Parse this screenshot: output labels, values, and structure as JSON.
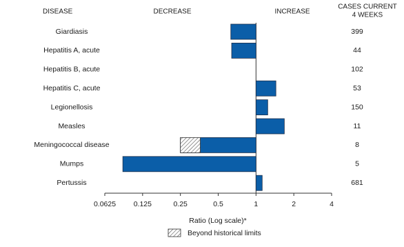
{
  "chart_data": {
    "type": "bar",
    "headers": {
      "disease": "DISEASE",
      "decrease": "DECREASE",
      "increase": "INCREASE",
      "cases": [
        "CASES CURRENT",
        "4 WEEKS"
      ]
    },
    "categories": [
      "Giardiasis",
      "Hepatitis A, acute",
      "Hepatitis B, acute",
      "Hepatitis C, acute",
      "Legionellosis",
      "Measles",
      "Meningococcal disease",
      "Mumps",
      "Pertussis"
    ],
    "values": [
      0.63,
      0.64,
      1,
      1.44,
      1.24,
      1.68,
      0.25,
      0.087,
      1.12
    ],
    "limits": [
      null,
      null,
      null,
      null,
      null,
      null,
      0.36,
      null,
      null
    ],
    "cases": [
      399,
      44,
      102,
      53,
      150,
      11,
      8,
      5,
      681
    ],
    "color": "#0b5ea8",
    "log_scale": true,
    "xlim": [
      0.0625,
      4
    ],
    "xticks": [
      0.0625,
      0.125,
      0.25,
      0.5,
      1,
      2,
      4
    ],
    "xlabel": "Ratio (Log scale)*",
    "legend": "Beyond historical limits"
  }
}
